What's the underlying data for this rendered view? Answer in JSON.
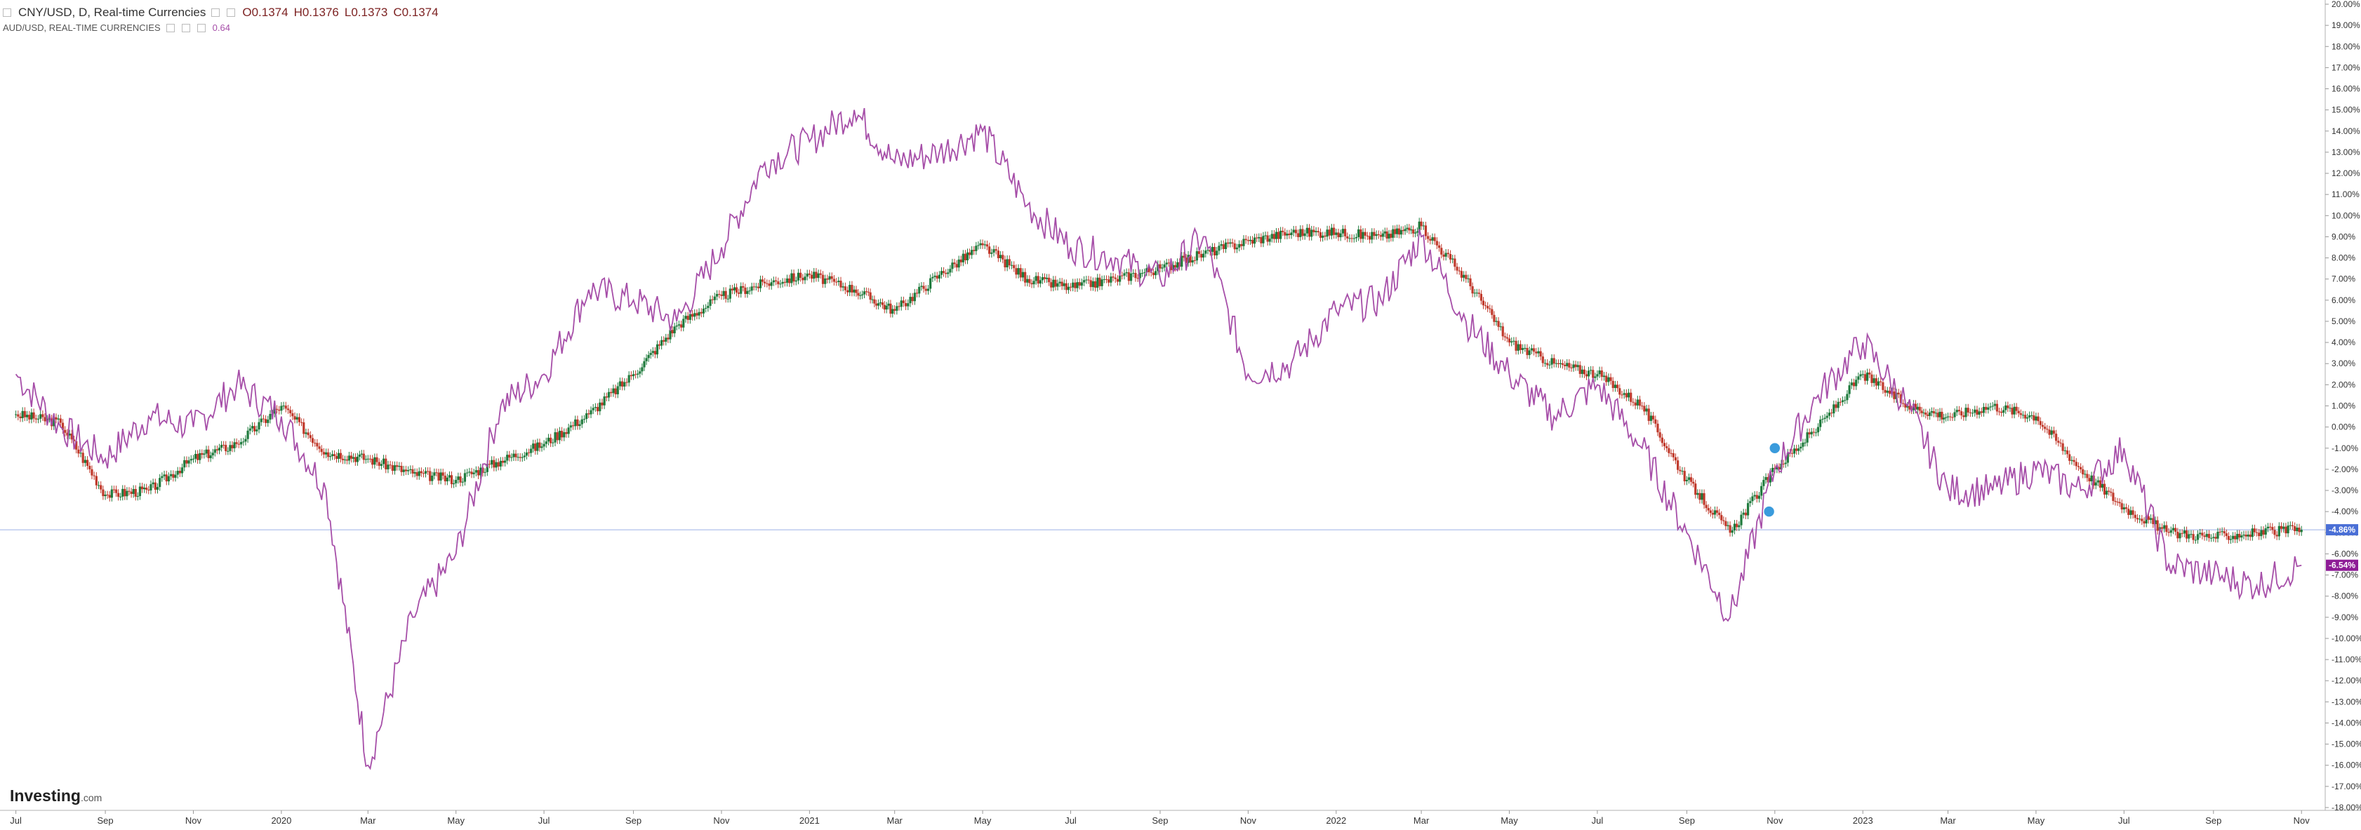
{
  "legend": {
    "main_label": "CNY/USD, D, Real-time Currencies",
    "open": "O0.1374",
    "high": "H0.1376",
    "low": "L0.1373",
    "close": "C0.1374",
    "overlay_label": "AUD/USD, REAL-TIME CURRENCIES",
    "overlay_value": "0.64"
  },
  "logo": {
    "brand": "Investing",
    "suffix": ".com"
  },
  "colors": {
    "overlay_line": "#a64ea8",
    "candle_up": "#1e7a3c",
    "candle_down": "#c0392b",
    "price_line": "#4a6fd6",
    "overlay_tag": "#8e1c96",
    "marker": "#3a9bdc"
  },
  "chart_data": {
    "type": "line",
    "title": "CNY/USD, D, Real-time Currencies",
    "x_labels": [
      "Jul",
      "Sep",
      "Nov",
      "2020",
      "Mar",
      "May",
      "Jul",
      "Sep",
      "Nov",
      "2021",
      "Mar",
      "May",
      "Jul",
      "Sep",
      "Nov",
      "2022",
      "Mar",
      "May",
      "Jul",
      "Sep",
      "Nov",
      "2023",
      "Mar",
      "May",
      "Jul",
      "Sep",
      "Nov"
    ],
    "y_unit": "%",
    "ylim": [
      -18,
      20
    ],
    "y_ticks": [
      "20.00%",
      "19.00%",
      "18.00%",
      "17.00%",
      "16.00%",
      "15.00%",
      "14.00%",
      "13.00%",
      "12.00%",
      "11.00%",
      "10.00%",
      "9.00%",
      "8.00%",
      "7.00%",
      "6.00%",
      "5.00%",
      "4.00%",
      "3.00%",
      "2.00%",
      "1.00%",
      "0.00%",
      "-1.00%",
      "-2.00%",
      "-3.00%",
      "-4.00%",
      "-5.00%",
      "-6.00%",
      "-7.00%",
      "-8.00%",
      "-9.00%",
      "-10.00%",
      "-11.00%",
      "-12.00%",
      "-13.00%",
      "-14.00%",
      "-15.00%",
      "-16.00%",
      "-17.00%",
      "-18.00%"
    ],
    "series": [
      {
        "name": "CNY/USD, D, Real-time Currencies",
        "style": "candlestick",
        "x": [
          "2019-07-01",
          "2019-08-01",
          "2019-09-01",
          "2019-10-01",
          "2019-11-01",
          "2019-12-01",
          "2020-01-01",
          "2020-02-01",
          "2020-03-01",
          "2020-04-01",
          "2020-05-01",
          "2020-06-01",
          "2020-07-01",
          "2020-08-01",
          "2020-09-01",
          "2020-10-01",
          "2020-11-01",
          "2020-12-01",
          "2021-01-01",
          "2021-02-01",
          "2021-03-01",
          "2021-04-01",
          "2021-05-01",
          "2021-06-01",
          "2021-07-01",
          "2021-08-01",
          "2021-09-01",
          "2021-10-01",
          "2021-11-01",
          "2021-12-01",
          "2022-01-01",
          "2022-02-01",
          "2022-03-01",
          "2022-04-01",
          "2022-05-01",
          "2022-06-01",
          "2022-07-01",
          "2022-08-01",
          "2022-09-01",
          "2022-10-01",
          "2022-11-01",
          "2022-12-01",
          "2023-01-01",
          "2023-02-01",
          "2023-03-01",
          "2023-04-01",
          "2023-05-01",
          "2023-06-01",
          "2023-07-01",
          "2023-08-01",
          "2023-09-01",
          "2023-10-01",
          "2023-11-01"
        ],
        "values": [
          0.6,
          0.2,
          -3.2,
          -3.0,
          -1.5,
          -0.8,
          1.0,
          -1.2,
          -1.5,
          -2.2,
          -2.5,
          -1.6,
          -0.8,
          0.6,
          2.5,
          4.8,
          6.2,
          6.8,
          7.2,
          6.5,
          5.5,
          7.2,
          8.6,
          7.0,
          6.6,
          7.0,
          7.5,
          8.2,
          8.8,
          9.2,
          9.2,
          9.0,
          9.5,
          7.0,
          4.0,
          3.0,
          2.5,
          1.0,
          -2.5,
          -5.0,
          -2.0,
          0.0,
          2.5,
          1.0,
          0.5,
          1.0,
          0.5,
          -2.0,
          -3.8,
          -5.0,
          -5.2,
          -5.0,
          -4.86
        ]
      },
      {
        "name": "AUD/USD, REAL-TIME CURRENCIES",
        "style": "line",
        "x": [
          "2019-07-01",
          "2019-08-01",
          "2019-09-01",
          "2019-10-01",
          "2019-11-01",
          "2019-12-01",
          "2020-01-01",
          "2020-02-01",
          "2020-03-01",
          "2020-04-01",
          "2020-05-01",
          "2020-06-01",
          "2020-07-01",
          "2020-08-01",
          "2020-09-01",
          "2020-10-01",
          "2020-11-01",
          "2020-12-01",
          "2021-01-01",
          "2021-02-01",
          "2021-03-01",
          "2021-04-01",
          "2021-05-01",
          "2021-06-01",
          "2021-07-01",
          "2021-08-01",
          "2021-09-01",
          "2021-10-01",
          "2021-11-01",
          "2021-12-01",
          "2022-01-01",
          "2022-02-01",
          "2022-03-01",
          "2022-04-01",
          "2022-05-01",
          "2022-06-01",
          "2022-07-01",
          "2022-08-01",
          "2022-09-01",
          "2022-10-01",
          "2022-11-01",
          "2022-12-01",
          "2023-01-01",
          "2023-02-01",
          "2023-03-01",
          "2023-04-01",
          "2023-05-01",
          "2023-06-01",
          "2023-07-01",
          "2023-08-01",
          "2023-09-01",
          "2023-10-01",
          "2023-11-01"
        ],
        "values": [
          2.5,
          0.0,
          -1.5,
          0.5,
          0.0,
          2.0,
          0.5,
          -3.0,
          -16.0,
          -9.0,
          -6.0,
          1.0,
          2.5,
          6.5,
          6.0,
          5.0,
          8.5,
          12.5,
          13.5,
          15.0,
          12.5,
          13.0,
          14.0,
          10.5,
          8.5,
          8.0,
          7.0,
          9.0,
          2.5,
          3.0,
          5.5,
          6.0,
          9.0,
          5.0,
          2.5,
          0.5,
          2.0,
          -1.0,
          -5.0,
          -9.0,
          -2.0,
          1.5,
          4.0,
          1.0,
          -3.0,
          -3.0,
          -2.0,
          -3.0,
          -1.0,
          -6.5,
          -7.0,
          -7.5,
          -6.54
        ]
      }
    ],
    "last_value_labels": [
      {
        "series": "CNY/USD, D, Real-time Currencies",
        "text": "-4.86%"
      },
      {
        "series": "AUD/USD, REAL-TIME CURRENCIES",
        "text": "-6.54%"
      }
    ],
    "markers": [
      {
        "date": "2022-11-01",
        "value": -1.0,
        "icon": "event-flag-icon"
      },
      {
        "date": "2022-10-28",
        "value": -4.0,
        "icon": "event-flag-icon"
      }
    ],
    "grid": false
  }
}
